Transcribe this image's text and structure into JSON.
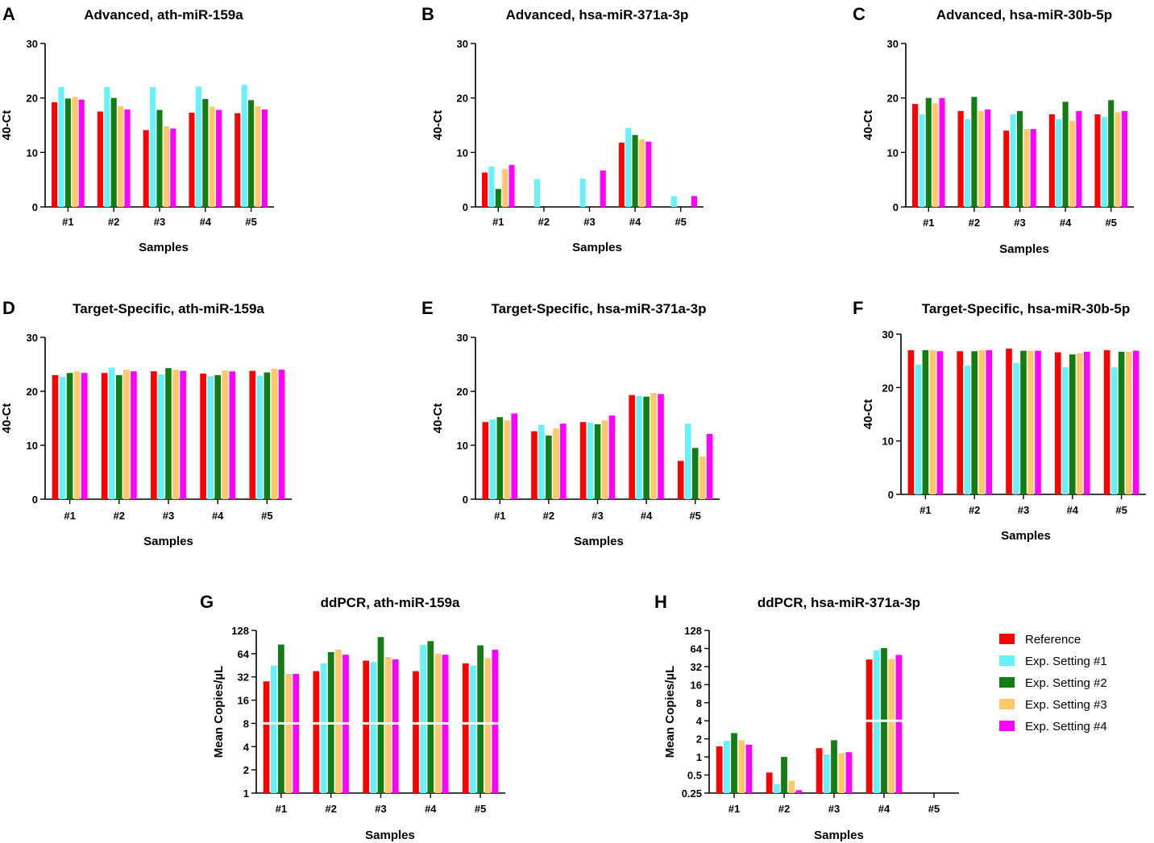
{
  "series_names": [
    "Reference",
    "Exp. Setting #1",
    "Exp. Setting #2",
    "Exp. Setting #3",
    "Exp. Setting #4"
  ],
  "series_colors": [
    "#ff0000",
    "#66f2f7",
    "#137d13",
    "#ffc96b",
    "#ff00ff"
  ],
  "legend": {
    "placement": "right, beside panel H",
    "items": [
      "Reference",
      "Exp. Setting #1",
      "Exp. Setting #2",
      "Exp. Setting #3",
      "Exp. Setting #4"
    ]
  },
  "chart_data": [
    {
      "panel": "A",
      "type": "bar",
      "title": "Advanced, ath-miR-159a",
      "xlabel": "Samples",
      "ylabel": "40-Ct",
      "scale": "linear",
      "ylim": [
        0,
        30
      ],
      "yticks": [
        0,
        10,
        20,
        30
      ],
      "ytick_labels": [
        "0",
        "10",
        "20",
        "30"
      ],
      "categories": [
        "#1",
        "#2",
        "#3",
        "#4",
        "#5"
      ],
      "series": [
        {
          "name": "Reference",
          "values": [
            19.2,
            17.5,
            14.1,
            17.3,
            17.2
          ]
        },
        {
          "name": "Exp. Setting #1",
          "values": [
            22.0,
            22.0,
            22.0,
            22.1,
            22.4
          ]
        },
        {
          "name": "Exp. Setting #2",
          "values": [
            19.9,
            20.0,
            17.8,
            19.8,
            19.6
          ]
        },
        {
          "name": "Exp. Setting #3",
          "values": [
            20.2,
            18.5,
            14.8,
            18.4,
            18.5
          ]
        },
        {
          "name": "Exp. Setting #4",
          "values": [
            19.7,
            17.9,
            14.4,
            17.8,
            17.9
          ]
        }
      ]
    },
    {
      "panel": "B",
      "type": "bar",
      "title": "Advanced, hsa-miR-371a-3p",
      "xlabel": "Samples",
      "ylabel": "40-Ct",
      "scale": "linear",
      "ylim": [
        0,
        30
      ],
      "yticks": [
        0,
        10,
        20,
        30
      ],
      "ytick_labels": [
        "0",
        "10",
        "20",
        "30"
      ],
      "categories": [
        "#1",
        "#2",
        "#3",
        "#4",
        "#5"
      ],
      "series": [
        {
          "name": "Reference",
          "values": [
            6.3,
            0,
            0,
            11.8,
            0
          ]
        },
        {
          "name": "Exp. Setting #1",
          "values": [
            7.4,
            5.1,
            5.2,
            14.5,
            2.0
          ]
        },
        {
          "name": "Exp. Setting #2",
          "values": [
            3.3,
            0,
            0,
            13.2,
            0
          ]
        },
        {
          "name": "Exp. Setting #3",
          "values": [
            7.0,
            0,
            0,
            12.4,
            0
          ]
        },
        {
          "name": "Exp. Setting #4",
          "values": [
            7.7,
            0,
            6.7,
            12.0,
            2.0
          ]
        }
      ]
    },
    {
      "panel": "C",
      "type": "bar",
      "title": "Advanced, hsa-miR-30b-5p",
      "xlabel": "Samples",
      "ylabel": "40-Ct",
      "scale": "linear",
      "ylim": [
        0,
        30
      ],
      "yticks": [
        0,
        10,
        20,
        30
      ],
      "ytick_labels": [
        "0",
        "10",
        "20",
        "30"
      ],
      "categories": [
        "#1",
        "#2",
        "#3",
        "#4",
        "#5"
      ],
      "series": [
        {
          "name": "Reference",
          "values": [
            18.9,
            17.6,
            14.0,
            17.0,
            17.0
          ]
        },
        {
          "name": "Exp. Setting #1",
          "values": [
            17.0,
            16.1,
            17.0,
            16.1,
            16.5
          ]
        },
        {
          "name": "Exp. Setting #2",
          "values": [
            20.0,
            20.2,
            17.6,
            19.3,
            19.6
          ]
        },
        {
          "name": "Exp. Setting #3",
          "values": [
            19.0,
            17.6,
            14.3,
            15.8,
            17.4
          ]
        },
        {
          "name": "Exp. Setting #4",
          "values": [
            20.0,
            17.9,
            14.3,
            17.6,
            17.6
          ]
        }
      ]
    },
    {
      "panel": "D",
      "type": "bar",
      "title": "Target-Specific, ath-miR-159a",
      "xlabel": "Samples",
      "ylabel": "40-Ct",
      "scale": "linear",
      "ylim": [
        0,
        30
      ],
      "yticks": [
        0,
        10,
        20,
        30
      ],
      "ytick_labels": [
        "0",
        "10",
        "20",
        "30"
      ],
      "categories": [
        "#1",
        "#2",
        "#3",
        "#4",
        "#5"
      ],
      "series": [
        {
          "name": "Reference",
          "values": [
            23.0,
            23.4,
            23.7,
            23.3,
            23.8
          ]
        },
        {
          "name": "Exp. Setting #1",
          "values": [
            22.7,
            24.4,
            23.1,
            22.8,
            22.9
          ]
        },
        {
          "name": "Exp. Setting #2",
          "values": [
            23.4,
            23.0,
            24.3,
            23.0,
            23.5
          ]
        },
        {
          "name": "Exp. Setting #3",
          "values": [
            23.7,
            24.0,
            24.0,
            23.9,
            24.2
          ]
        },
        {
          "name": "Exp. Setting #4",
          "values": [
            23.4,
            23.7,
            23.8,
            23.7,
            24.0
          ]
        }
      ]
    },
    {
      "panel": "E",
      "type": "bar",
      "title": "Target-Specific, hsa-miR-371a-3p",
      "xlabel": "Samples",
      "ylabel": "40-Ct",
      "scale": "linear",
      "ylim": [
        0,
        30
      ],
      "yticks": [
        0,
        10,
        20,
        30
      ],
      "ytick_labels": [
        "0",
        "10",
        "20",
        "30"
      ],
      "categories": [
        "#1",
        "#2",
        "#3",
        "#4",
        "#5"
      ],
      "series": [
        {
          "name": "Reference",
          "values": [
            14.3,
            12.6,
            14.3,
            19.3,
            7.1
          ]
        },
        {
          "name": "Exp. Setting #1",
          "values": [
            14.8,
            13.8,
            14.2,
            19.1,
            14.0
          ]
        },
        {
          "name": "Exp. Setting #2",
          "values": [
            15.2,
            11.8,
            13.9,
            19.0,
            9.5
          ]
        },
        {
          "name": "Exp. Setting #3",
          "values": [
            14.6,
            13.1,
            14.6,
            19.7,
            7.9
          ]
        },
        {
          "name": "Exp. Setting #4",
          "values": [
            15.9,
            14.0,
            15.5,
            19.5,
            12.1
          ]
        }
      ]
    },
    {
      "panel": "F",
      "type": "bar",
      "title": "Target-Specific, hsa-miR-30b-5p",
      "xlabel": "Samples",
      "ylabel": "40-Ct",
      "scale": "linear",
      "ylim": [
        0,
        30
      ],
      "yticks": [
        0,
        10,
        20,
        30
      ],
      "ytick_labels": [
        "0",
        "10",
        "20",
        "30"
      ],
      "categories": [
        "#1",
        "#2",
        "#3",
        "#4",
        "#5"
      ],
      "series": [
        {
          "name": "Reference",
          "values": [
            27.0,
            26.8,
            27.3,
            26.6,
            27.0
          ]
        },
        {
          "name": "Exp. Setting #1",
          "values": [
            24.3,
            24.1,
            24.6,
            23.8,
            23.8
          ]
        },
        {
          "name": "Exp. Setting #2",
          "values": [
            27.0,
            26.8,
            26.9,
            26.2,
            26.7
          ]
        },
        {
          "name": "Exp. Setting #3",
          "values": [
            27.0,
            27.0,
            26.9,
            26.4,
            26.7
          ]
        },
        {
          "name": "Exp. Setting #4",
          "values": [
            26.8,
            27.0,
            26.9,
            26.7,
            26.9
          ]
        }
      ]
    },
    {
      "panel": "G",
      "type": "bar",
      "title": "ddPCR, ath-miR-159a",
      "xlabel": "Samples",
      "ylabel": "Mean Copies/µL",
      "scale": "log2",
      "ylim": [
        1,
        128
      ],
      "yticks": [
        1,
        2,
        4,
        8,
        16,
        32,
        64,
        128
      ],
      "ytick_labels": [
        "1",
        "2",
        "4",
        "8",
        "16",
        "32",
        "64",
        "128"
      ],
      "categories": [
        "#1",
        "#2",
        "#3",
        "#4",
        "#5"
      ],
      "series": [
        {
          "name": "Reference",
          "values": [
            28,
            38,
            52,
            38,
            48
          ]
        },
        {
          "name": "Exp. Setting #1",
          "values": [
            45,
            48,
            50,
            83,
            45
          ]
        },
        {
          "name": "Exp. Setting #2",
          "values": [
            84,
            67,
            105,
            93,
            82
          ]
        },
        {
          "name": "Exp. Setting #3",
          "values": [
            35,
            72,
            58,
            64,
            56
          ]
        },
        {
          "name": "Exp. Setting #4",
          "values": [
            35,
            62,
            54,
            62,
            72
          ]
        }
      ]
    },
    {
      "panel": "H",
      "type": "bar",
      "title": "ddPCR, hsa-miR-371a-3p",
      "xlabel": "Samples",
      "ylabel": "Mean Copies/µL",
      "scale": "log2",
      "ylim": [
        0.25,
        128
      ],
      "yticks": [
        0.25,
        0.5,
        1,
        2,
        4,
        8,
        16,
        32,
        64,
        128
      ],
      "ytick_labels": [
        "0.25",
        "0.5",
        "1",
        "2",
        "4",
        "8",
        "16",
        "32",
        "64",
        "128"
      ],
      "categories": [
        "#1",
        "#2",
        "#3",
        "#4",
        "#5"
      ],
      "series": [
        {
          "name": "Reference",
          "values": [
            1.5,
            0.55,
            1.4,
            42,
            0
          ]
        },
        {
          "name": "Exp. Setting #1",
          "values": [
            1.85,
            0.35,
            1.1,
            60,
            0
          ]
        },
        {
          "name": "Exp. Setting #2",
          "values": [
            2.5,
            1.0,
            1.9,
            65,
            0
          ]
        },
        {
          "name": "Exp. Setting #3",
          "values": [
            1.9,
            0.4,
            1.15,
            43,
            0
          ]
        },
        {
          "name": "Exp. Setting #4",
          "values": [
            1.6,
            0.28,
            1.2,
            50,
            0
          ]
        }
      ]
    }
  ]
}
